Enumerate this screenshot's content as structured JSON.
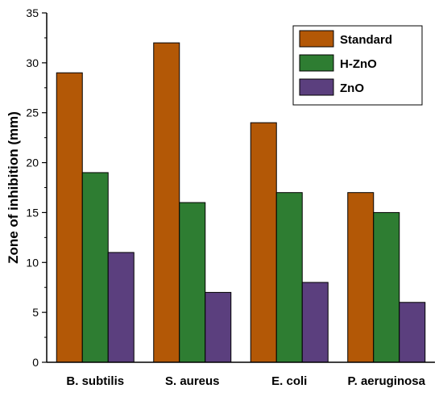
{
  "chart_data": {
    "type": "bar",
    "categories": [
      "B. subtilis",
      "S. aureus",
      "E. coli",
      "P. aeruginosa"
    ],
    "series": [
      {
        "name": "Standard",
        "color": "#b35806",
        "values": [
          29,
          32,
          24,
          17
        ]
      },
      {
        "name": "H-ZnO",
        "color": "#2e7d32",
        "values": [
          19,
          16,
          17,
          15
        ]
      },
      {
        "name": "ZnO",
        "color": "#5b3f7e",
        "values": [
          11,
          7,
          8,
          6
        ]
      }
    ],
    "title": "",
    "xlabel": "",
    "ylabel": "Zone of inhibition (mm)",
    "ylim": [
      0,
      35
    ],
    "yticks": [
      0,
      5,
      10,
      15,
      20,
      25,
      30,
      35
    ],
    "grid": false,
    "legend_position": "top-right"
  }
}
